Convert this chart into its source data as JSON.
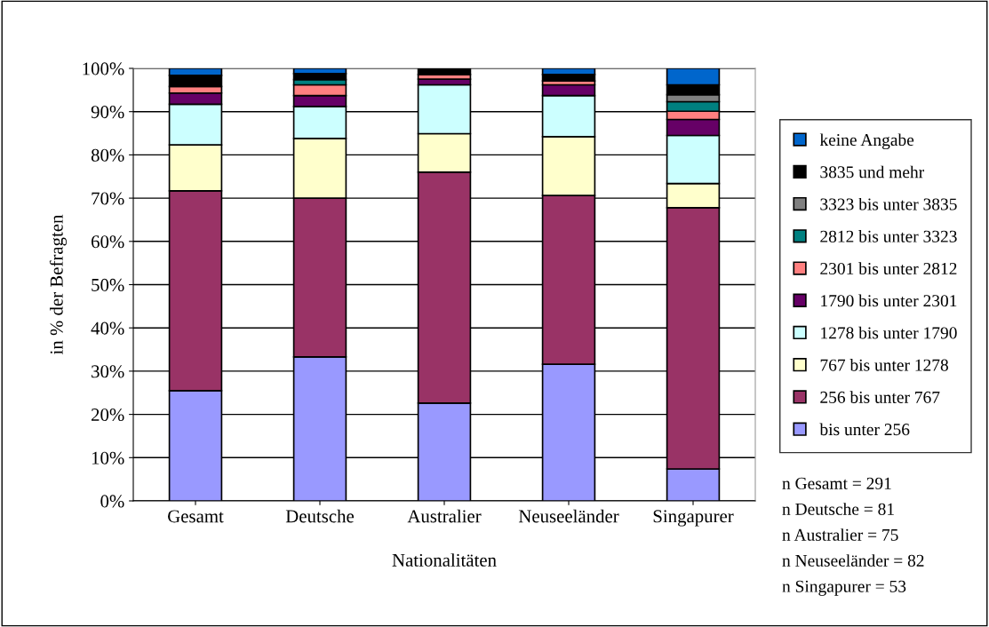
{
  "chart_data": {
    "type": "bar",
    "stacked": true,
    "xlabel": "Nationalitäten",
    "ylabel": "in % der Befragten",
    "categories": [
      "Gesamt",
      "Deutsche",
      "Australier",
      "Neuseeländer",
      "Singapurer"
    ],
    "series": [
      {
        "name": "bis unter 256",
        "color": "#9999ff",
        "values": [
          25.5,
          33.3,
          22.6,
          31.6,
          7.4
        ]
      },
      {
        "name": "256 bis unter 767",
        "color": "#993366",
        "values": [
          46.2,
          36.7,
          53.4,
          39.0,
          60.4
        ]
      },
      {
        "name": "767 bis unter 1278",
        "color": "#ffffcc",
        "values": [
          10.6,
          13.8,
          8.9,
          13.6,
          5.6
        ]
      },
      {
        "name": "1278 bis unter 1790",
        "color": "#ccffff",
        "values": [
          9.4,
          7.4,
          11.3,
          9.5,
          11.1
        ]
      },
      {
        "name": "1790 bis unter 2301",
        "color": "#660066",
        "values": [
          2.6,
          2.5,
          1.3,
          2.5,
          3.7
        ]
      },
      {
        "name": "2301 bis unter 2812",
        "color": "#ff8080",
        "values": [
          1.5,
          2.5,
          1.1,
          0.9,
          1.9
        ]
      },
      {
        "name": "2812 bis unter 3323",
        "color": "#008080",
        "values": [
          null,
          1.2,
          null,
          null,
          2.2
        ]
      },
      {
        "name": "3323 bis unter 3835",
        "color": "#808080",
        "values": [
          null,
          null,
          null,
          null,
          1.6
        ]
      },
      {
        "name": "3835 und mehr",
        "color": "#000000",
        "values": [
          2.6,
          1.4,
          1.4,
          1.5,
          2.3
        ]
      },
      {
        "name": "keine Angabe",
        "color": "#0066cc",
        "values": [
          1.6,
          1.2,
          null,
          1.4,
          3.8
        ]
      }
    ],
    "ylim": [
      0,
      100
    ],
    "yticks": [
      {
        "value": 0,
        "label": "0%"
      },
      {
        "value": 10,
        "label": "10%"
      },
      {
        "value": 20,
        "label": "20%"
      },
      {
        "value": 30,
        "label": "30%"
      },
      {
        "value": 40,
        "label": "40%"
      },
      {
        "value": 50,
        "label": "50%"
      },
      {
        "value": 60,
        "label": "60%"
      },
      {
        "value": 70,
        "label": "70%"
      },
      {
        "value": 80,
        "label": "80%"
      },
      {
        "value": 90,
        "label": "90%"
      },
      {
        "value": 100,
        "label": "100%"
      }
    ],
    "grid": "y",
    "legend": "right",
    "annotations": [
      "n Gesamt = 291",
      "n Deutsche = 81",
      "n Australier = 75",
      "n Neuseeländer = 82",
      "n Singapurer = 53"
    ]
  }
}
